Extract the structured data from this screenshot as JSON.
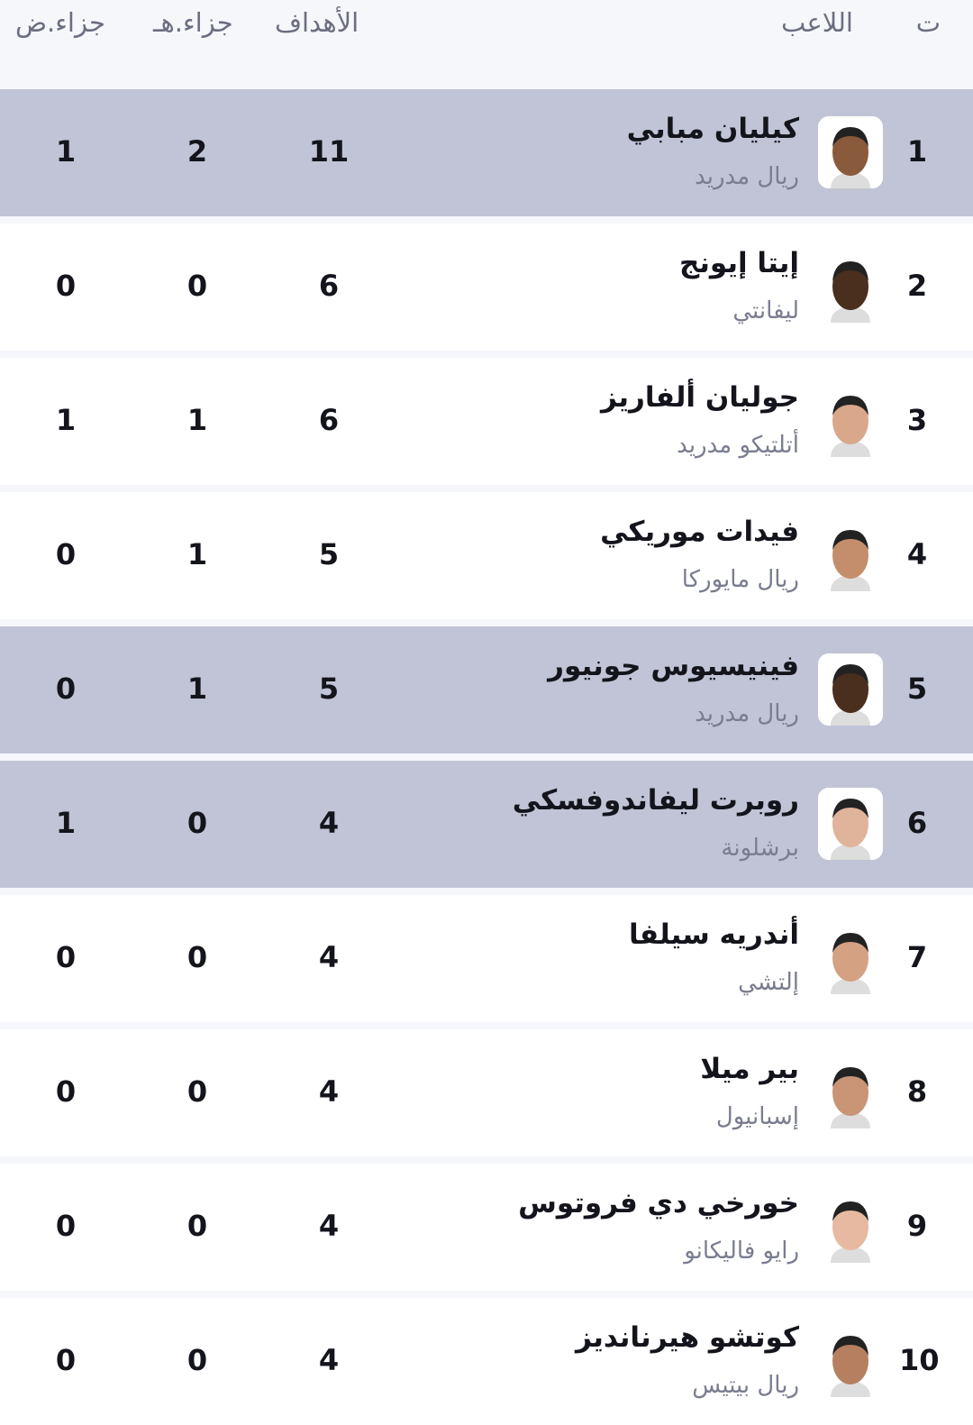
{
  "header": {
    "rank": "ت",
    "player": "اللاعب",
    "goals": "الأهداف",
    "pen_scored": "جزاء.هـ",
    "pen_missed": "جزاء.ض"
  },
  "colors": {
    "highlight": "#c1c4d6",
    "row": "#ffffff",
    "background": "#f6f7fb"
  },
  "rows": [
    {
      "rank": "1",
      "name": "كيليان مبابي",
      "team": "ريال مدريد",
      "goals": "11",
      "pen_scored": "2",
      "pen_missed": "1",
      "highlighted": true,
      "skin": "#8a5a3c"
    },
    {
      "rank": "2",
      "name": "إيتا إيونج",
      "team": "ليفانتي",
      "goals": "6",
      "pen_scored": "0",
      "pen_missed": "0",
      "highlighted": false,
      "skin": "#4a2e1e"
    },
    {
      "rank": "3",
      "name": "جوليان ألفاريز",
      "team": "أتلتيكو مدريد",
      "goals": "6",
      "pen_scored": "1",
      "pen_missed": "1",
      "highlighted": false,
      "skin": "#d9a88a"
    },
    {
      "rank": "4",
      "name": "فيدات موريكي",
      "team": "ريال مايوركا",
      "goals": "5",
      "pen_scored": "1",
      "pen_missed": "0",
      "highlighted": false,
      "skin": "#c48e6c"
    },
    {
      "rank": "5",
      "name": "فينيسيوس جونيور",
      "team": "ريال مدريد",
      "goals": "5",
      "pen_scored": "1",
      "pen_missed": "0",
      "highlighted": true,
      "skin": "#4a2e1e"
    },
    {
      "rank": "6",
      "name": "روبرت ليفاندوفسكي",
      "team": "برشلونة",
      "goals": "4",
      "pen_scored": "0",
      "pen_missed": "1",
      "highlighted": true,
      "skin": "#e0b49a"
    },
    {
      "rank": "7",
      "name": "أندريه سيلفا",
      "team": "إلتشي",
      "goals": "4",
      "pen_scored": "0",
      "pen_missed": "0",
      "highlighted": false,
      "skin": "#d4a183"
    },
    {
      "rank": "8",
      "name": "بير ميلا",
      "team": "إسبانيول",
      "goals": "4",
      "pen_scored": "0",
      "pen_missed": "0",
      "highlighted": false,
      "skin": "#c99576"
    },
    {
      "rank": "9",
      "name": "خورخي دي فروتوس",
      "team": "رايو فاليكانو",
      "goals": "4",
      "pen_scored": "0",
      "pen_missed": "0",
      "highlighted": false,
      "skin": "#e6b9a0"
    },
    {
      "rank": "10",
      "name": "كوتشو هيرنانديز",
      "team": "ريال بيتيس",
      "goals": "4",
      "pen_scored": "0",
      "pen_missed": "0",
      "highlighted": false,
      "skin": "#b67f60"
    }
  ]
}
